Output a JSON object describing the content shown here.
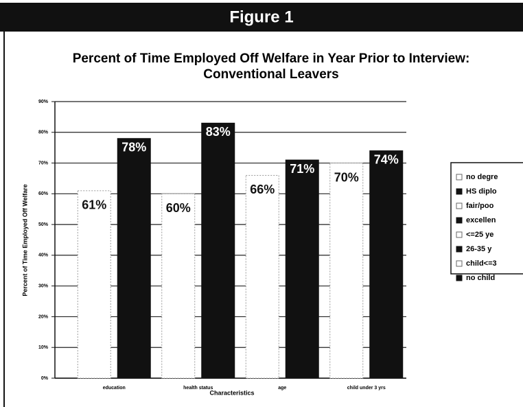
{
  "chart_data": {
    "type": "bar",
    "header": "Figure 1",
    "title": "Percent of Time Employed Off Welfare in Year Prior to Interview:",
    "subtitle": "Conventional Leavers",
    "y_label": "Percent of Time Employed Off Welfare",
    "x_label": "Characteristics",
    "categories": [
      "education",
      "health status",
      "age",
      "child under 3 yrs"
    ],
    "series": [
      {
        "name": "no degre",
        "color": "#ffffff",
        "values": [
          61,
          null,
          null,
          null
        ],
        "value_labels": [
          "61%",
          null,
          null,
          null
        ]
      },
      {
        "name": "HS diplo",
        "color": "#111111",
        "values": [
          78,
          null,
          null,
          null
        ],
        "value_labels": [
          "78%",
          null,
          null,
          null
        ]
      },
      {
        "name": "fair/poo",
        "color": "#ffffff",
        "values": [
          null,
          60,
          null,
          null
        ],
        "value_labels": [
          null,
          "60%",
          null,
          null
        ]
      },
      {
        "name": "excellen",
        "color": "#111111",
        "values": [
          null,
          83,
          null,
          null
        ],
        "value_labels": [
          null,
          "83%",
          null,
          null
        ]
      },
      {
        "name": "<=25 ye",
        "color": "#ffffff",
        "values": [
          null,
          null,
          66,
          null
        ],
        "value_labels": [
          null,
          null,
          "66%",
          null
        ]
      },
      {
        "name": "26-35 y",
        "color": "#111111",
        "values": [
          null,
          null,
          71,
          null
        ],
        "value_labels": [
          null,
          null,
          "71%",
          null
        ]
      },
      {
        "name": "child<=3",
        "color": "#ffffff",
        "values": [
          null,
          null,
          null,
          70
        ],
        "value_labels": [
          null,
          null,
          null,
          "70%"
        ]
      },
      {
        "name": "no child",
        "color": "#111111",
        "values": [
          null,
          null,
          null,
          74
        ],
        "value_labels": [
          null,
          null,
          null,
          "74%"
        ]
      }
    ],
    "ylim": [
      0,
      90
    ],
    "yticks": [
      {
        "value": 0,
        "label": "0%"
      },
      {
        "value": 10,
        "label": "10%"
      },
      {
        "value": 20,
        "label": "20%"
      },
      {
        "value": 30,
        "label": "30%"
      },
      {
        "value": 40,
        "label": "40%"
      },
      {
        "value": 50,
        "label": "50%"
      },
      {
        "value": 60,
        "label": "60%"
      },
      {
        "value": 70,
        "label": "70%"
      },
      {
        "value": 80,
        "label": "80%"
      },
      {
        "value": 90,
        "label": "90%"
      }
    ],
    "grid": true,
    "legend": "right"
  }
}
